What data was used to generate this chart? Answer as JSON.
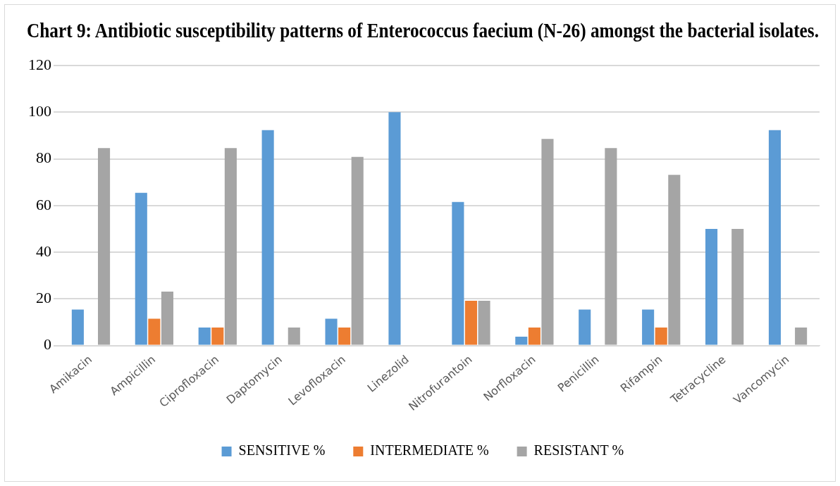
{
  "chart_data": {
    "type": "bar",
    "title": "Chart 9: Antibiotic susceptibility patterns of Enterococcus faecium (N-26) amongst the bacterial isolates.",
    "categories": [
      "Amikacin",
      "Ampicillin",
      "Ciprofloxacin",
      "Daptomycin",
      "Levofloxacin",
      "Linezolid",
      "Nitrofurantoin",
      "Norfloxacin",
      "Penicillin",
      "Rifampin",
      "Tetracycline",
      "Vancomycin"
    ],
    "series": [
      {
        "name": "SENSITIVE %",
        "color": "#5b9bd5",
        "values": [
          15.4,
          65.4,
          7.7,
          92.3,
          11.5,
          100,
          61.5,
          3.8,
          15.4,
          15.4,
          50,
          92.3
        ]
      },
      {
        "name": "INTERMEDIATE %",
        "color": "#ed7d31",
        "values": [
          0,
          11.5,
          7.7,
          0,
          7.7,
          0,
          19.2,
          7.7,
          0,
          7.7,
          0,
          0
        ]
      },
      {
        "name": "RESISTANT %",
        "color": "#a5a5a5",
        "values": [
          84.6,
          23.1,
          84.6,
          7.7,
          80.8,
          0,
          19.2,
          88.5,
          84.6,
          73.1,
          50,
          7.7
        ]
      }
    ],
    "ylim": [
      0,
      120
    ],
    "yticks": [
      0,
      20,
      40,
      60,
      80,
      100,
      120
    ],
    "grid": "y",
    "legend": "bottom"
  }
}
